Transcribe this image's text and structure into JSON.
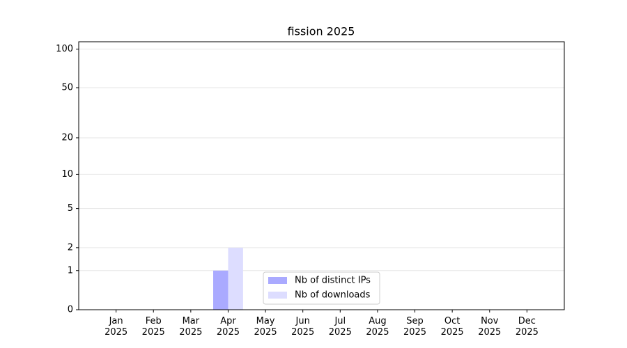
{
  "chart_data": {
    "type": "bar",
    "title": "fission 2025",
    "categories": [
      "Jan 2025",
      "Feb 2025",
      "Mar 2025",
      "Apr 2025",
      "May 2025",
      "Jun 2025",
      "Jul 2025",
      "Aug 2025",
      "Sep 2025",
      "Oct 2025",
      "Nov 2025",
      "Dec 2025"
    ],
    "series": [
      {
        "name": "Nb of distinct IPs",
        "color": "#aaaaff",
        "values": [
          0,
          0,
          0,
          1,
          0,
          0,
          0,
          0,
          0,
          0,
          0,
          0
        ]
      },
      {
        "name": "Nb of downloads",
        "color": "#ddddff",
        "values": [
          0,
          0,
          0,
          2,
          0,
          0,
          0,
          0,
          0,
          0,
          0,
          0
        ]
      }
    ],
    "yscale": "log1p",
    "ylim": [
      0,
      114
    ],
    "yticks": [
      0,
      1,
      2,
      5,
      10,
      20,
      50,
      100
    ],
    "grid": true,
    "legend": "lower center"
  }
}
